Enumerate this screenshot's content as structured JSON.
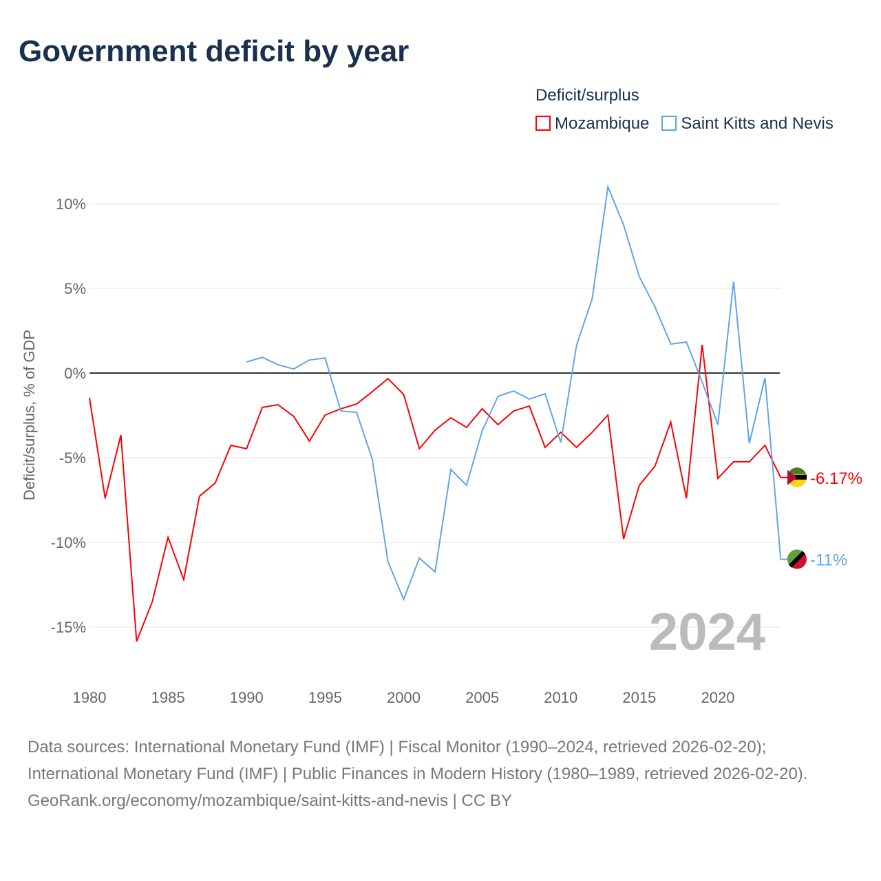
{
  "title": "Government deficit by year",
  "legend_title": "Deficit/surplus",
  "footer": {
    "line1": "Data sources: International Monetary Fund (IMF) | Fiscal Monitor (1990–2024, retrieved 2026-02-20); International Monetary Fund (IMF) | Public Finances in Modern History (1980–1989, retrieved 2026-02-20).",
    "line2": "GeoRank.org/economy/mozambique/saint-kitts-and-nevis | CC BY"
  },
  "chart_data": {
    "type": "line",
    "title": "Government deficit by year",
    "ylabel": "Deficit/surplus, % of GDP",
    "xlabel": "",
    "ylim": [
      -17,
      12
    ],
    "xlim": [
      1980,
      2024
    ],
    "yticks": [
      10,
      5,
      0,
      -5,
      -10,
      -15
    ],
    "ytick_labels": [
      "10%",
      "5%",
      "0%",
      "-5%",
      "-10%",
      "-15%"
    ],
    "xticks": [
      1980,
      1985,
      1990,
      1995,
      2000,
      2005,
      2010,
      2015,
      2020
    ],
    "xtick_labels": [
      "1980",
      "1985",
      "1990",
      "1995",
      "2000",
      "2005",
      "2010",
      "2015",
      "2020"
    ],
    "year_label": "2024",
    "legend_position": "top-right",
    "series": [
      {
        "name": "Mozambique",
        "color": "#ff0000",
        "end_label": "-6.17%",
        "start": 1980,
        "values": [
          -1.46,
          -7.4,
          -3.66,
          -15.85,
          -13.5,
          -9.7,
          -12.2,
          -7.28,
          -6.5,
          -4.27,
          -4.47,
          -2.03,
          -1.87,
          -2.56,
          -4.02,
          -2.48,
          -2.11,
          -1.83,
          -1.1,
          -0.33,
          -1.26,
          -4.47,
          -3.37,
          -2.64,
          -3.21,
          -2.11,
          -3.05,
          -2.24,
          -1.95,
          -4.39,
          -3.5,
          -4.39,
          -3.5,
          -2.48,
          -9.8,
          -6.63,
          -5.49,
          -2.89,
          -7.4,
          1.67,
          -6.22,
          -5.24,
          -5.24,
          -4.27,
          -6.17
        ]
      },
      {
        "name": "Saint Kitts and Nevis",
        "color": "#5ea5ec",
        "end_label": "-11%",
        "start": 1990,
        "values": [
          0.65,
          0.93,
          0.49,
          0.24,
          0.77,
          0.89,
          -2.24,
          -2.32,
          -5.08,
          -11.14,
          -13.37,
          -10.93,
          -11.75,
          -5.69,
          -6.63,
          -3.41,
          -1.38,
          -1.06,
          -1.54,
          -1.22,
          -4.1,
          1.63,
          4.39,
          11.0,
          8.74,
          5.69,
          3.9,
          1.71,
          1.83,
          -0.53,
          -3.05,
          5.41,
          -4.15,
          -0.28,
          -11.0
        ]
      }
    ]
  }
}
